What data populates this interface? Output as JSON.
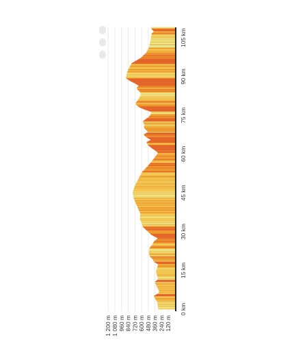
{
  "chart_data": {
    "type": "area",
    "orientation": "rotated",
    "title": "",
    "xlabel": "",
    "ylabel": "",
    "elevation_ticks": [
      "120 m",
      "240 m",
      "360 m",
      "480 m",
      "600 m",
      "720 m",
      "840 m",
      "960 m",
      "1 080 m",
      "1 200 m"
    ],
    "distance_ticks": [
      "0 km",
      "15 km",
      "30 km",
      "45 km",
      "60 km",
      "75 km",
      "90 km",
      "105 km"
    ],
    "elevation_range_m": [
      0,
      1200
    ],
    "distance_range_km": [
      0,
      109
    ],
    "grid": true,
    "profile": [
      {
        "km": 0,
        "m": 300
      },
      {
        "km": 3,
        "m": 320
      },
      {
        "km": 5,
        "m": 380
      },
      {
        "km": 6,
        "m": 300
      },
      {
        "km": 7,
        "m": 280
      },
      {
        "km": 9,
        "m": 330
      },
      {
        "km": 10.5,
        "m": 360
      },
      {
        "km": 11.5,
        "m": 300
      },
      {
        "km": 13,
        "m": 320
      },
      {
        "km": 14.5,
        "m": 340
      },
      {
        "km": 16,
        "m": 320
      },
      {
        "km": 17.5,
        "m": 300
      },
      {
        "km": 18.5,
        "m": 380
      },
      {
        "km": 19.5,
        "m": 400
      },
      {
        "km": 20.5,
        "m": 450
      },
      {
        "km": 22,
        "m": 470
      },
      {
        "km": 23.5,
        "m": 460
      },
      {
        "km": 24.5,
        "m": 420
      },
      {
        "km": 26,
        "m": 380
      },
      {
        "km": 27.5,
        "m": 300
      },
      {
        "km": 29,
        "m": 430
      },
      {
        "km": 30.5,
        "m": 500
      },
      {
        "km": 32,
        "m": 580
      },
      {
        "km": 33.5,
        "m": 600
      },
      {
        "km": 35,
        "m": 630
      },
      {
        "km": 37,
        "m": 620
      },
      {
        "km": 39,
        "m": 660
      },
      {
        "km": 41,
        "m": 700
      },
      {
        "km": 43,
        "m": 740
      },
      {
        "km": 45,
        "m": 760
      },
      {
        "km": 47,
        "m": 730
      },
      {
        "km": 49,
        "m": 690
      },
      {
        "km": 51,
        "m": 640
      },
      {
        "km": 53,
        "m": 590
      },
      {
        "km": 55,
        "m": 500
      },
      {
        "km": 57,
        "m": 420
      },
      {
        "km": 59,
        "m": 350
      },
      {
        "km": 60.5,
        "m": 300
      },
      {
        "km": 61.5,
        "m": 350
      },
      {
        "km": 62.5,
        "m": 420
      },
      {
        "km": 63.5,
        "m": 480
      },
      {
        "km": 64.5,
        "m": 510
      },
      {
        "km": 65.5,
        "m": 420
      },
      {
        "km": 66.5,
        "m": 500
      },
      {
        "km": 67.5,
        "m": 560
      },
      {
        "km": 68.5,
        "m": 470
      },
      {
        "km": 69.5,
        "m": 520
      },
      {
        "km": 70.5,
        "m": 560
      },
      {
        "km": 71.5,
        "m": 540
      },
      {
        "km": 72.5,
        "m": 580
      },
      {
        "km": 73.5,
        "m": 520
      },
      {
        "km": 74.5,
        "m": 460
      },
      {
        "km": 75.5,
        "m": 430
      },
      {
        "km": 76.5,
        "m": 430
      },
      {
        "km": 77.5,
        "m": 560
      },
      {
        "km": 78.5,
        "m": 660
      },
      {
        "km": 79.5,
        "m": 710
      },
      {
        "km": 81,
        "m": 660
      },
      {
        "km": 82.5,
        "m": 620
      },
      {
        "km": 84,
        "m": 620
      },
      {
        "km": 85.5,
        "m": 690
      },
      {
        "km": 86.5,
        "m": 640
      },
      {
        "km": 87.5,
        "m": 720
      },
      {
        "km": 88.5,
        "m": 810
      },
      {
        "km": 89.5,
        "m": 880
      },
      {
        "km": 91.5,
        "m": 860
      },
      {
        "km": 93,
        "m": 830
      },
      {
        "km": 95,
        "m": 780
      },
      {
        "km": 97,
        "m": 620
      },
      {
        "km": 99,
        "m": 520
      },
      {
        "km": 101,
        "m": 470
      },
      {
        "km": 103,
        "m": 450
      },
      {
        "km": 105,
        "m": 430
      },
      {
        "km": 106.5,
        "m": 420
      },
      {
        "km": 107.5,
        "m": 370
      },
      {
        "km": 108.5,
        "m": 420
      },
      {
        "km": 109,
        "m": 430
      }
    ],
    "gradient_colors": {
      "gentle": "#e8e892",
      "moderate": "#f3c653",
      "steep": "#ee9a2c",
      "very_steep": "#e4652a"
    },
    "colors": {
      "grid": "#e8e8e8",
      "axis": "#222222",
      "text": "#333333"
    }
  }
}
